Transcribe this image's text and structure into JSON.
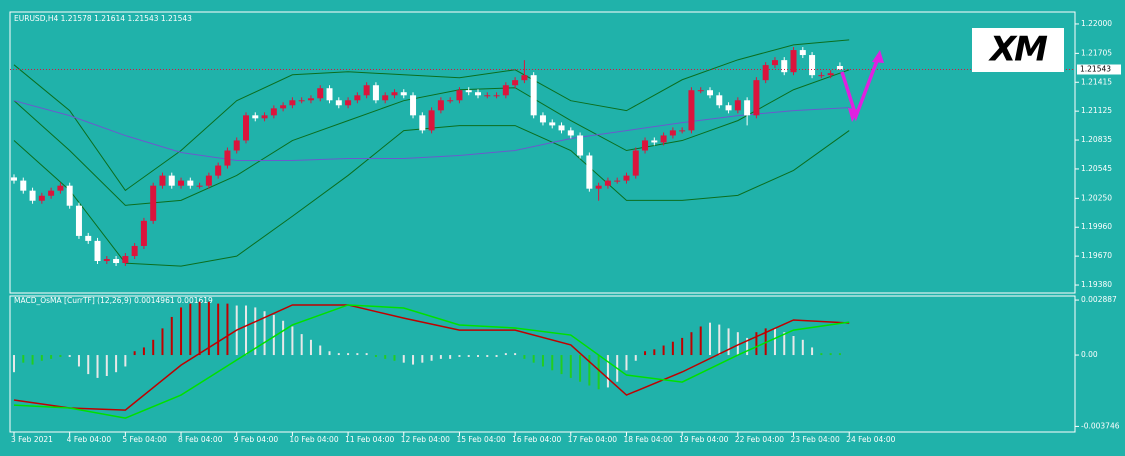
{
  "chart_data": [
    {
      "type": "candlestick",
      "title": "EURUSD,H4",
      "logo": "XM",
      "open": [
        1.2046,
        1.20428,
        1.20327,
        1.20226,
        1.20276,
        1.20327,
        1.20377,
        1.20176,
        1.19873,
        1.19823,
        1.19621,
        1.19641,
        1.19601,
        1.19671,
        1.19772,
        1.20024,
        1.20377,
        1.20478,
        1.20377,
        1.20428,
        1.20377,
        1.20377,
        1.20478,
        1.20579,
        1.2073,
        1.20831,
        1.21083,
        1.21053,
        1.21083,
        1.21153,
        1.21184,
        1.21234,
        1.21234,
        1.21254,
        1.21355,
        1.21234,
        1.21184,
        1.21234,
        1.21284,
        1.21385,
        1.21234,
        1.21284,
        1.21315,
        1.21284,
        1.21083,
        1.20932,
        1.21133,
        1.21234,
        1.21234,
        1.21335,
        1.21315,
        1.21284,
        1.21284,
        1.21284,
        1.21385,
        1.21436,
        1.21486,
        1.21083,
        1.21012,
        1.20982,
        1.20932,
        1.20881,
        1.2068,
        1.20347,
        1.20377,
        1.20428,
        1.20428,
        1.20478,
        1.2073,
        1.20831,
        1.20811,
        1.20881,
        1.20932,
        1.20932,
        1.21335,
        1.21335,
        1.21284,
        1.21184,
        1.21133,
        1.21234,
        1.21083,
        1.21436,
        1.21587,
        1.21637,
        1.21516,
        1.21738,
        1.21688,
        1.21486,
        1.21486,
        1.21578
      ],
      "high": [
        1.2049,
        1.20458,
        1.20357,
        1.20306,
        1.20357,
        1.20407,
        1.20407,
        1.20206,
        1.19903,
        1.19853,
        1.19671,
        1.19671,
        1.19701,
        1.19802,
        1.20054,
        1.20407,
        1.20508,
        1.20508,
        1.20458,
        1.20458,
        1.20407,
        1.20508,
        1.20609,
        1.2076,
        1.20861,
        1.21113,
        1.21113,
        1.21113,
        1.21183,
        1.21214,
        1.21264,
        1.21264,
        1.21284,
        1.21385,
        1.21385,
        1.21264,
        1.21264,
        1.21314,
        1.21415,
        1.21415,
        1.21314,
        1.21345,
        1.21345,
        1.21314,
        1.21113,
        1.21163,
        1.21264,
        1.21264,
        1.21365,
        1.21365,
        1.21345,
        1.21314,
        1.21314,
        1.21415,
        1.21466,
        1.21637,
        1.21516,
        1.21113,
        1.21042,
        1.21012,
        1.20962,
        1.20911,
        1.2071,
        1.20407,
        1.20458,
        1.20458,
        1.20508,
        1.2076,
        1.20861,
        1.20861,
        1.20911,
        1.20962,
        1.20962,
        1.21365,
        1.21365,
        1.21365,
        1.21314,
        1.21214,
        1.21264,
        1.21264,
        1.21466,
        1.21617,
        1.21667,
        1.21667,
        1.21768,
        1.21768,
        1.21718,
        1.21516,
        1.21536,
        1.21614
      ],
      "low": [
        1.20398,
        1.20297,
        1.20196,
        1.20196,
        1.20246,
        1.20297,
        1.20146,
        1.19843,
        1.19793,
        1.19591,
        1.19591,
        1.19571,
        1.19571,
        1.19641,
        1.19742,
        1.19994,
        1.20347,
        1.20347,
        1.20347,
        1.20347,
        1.20347,
        1.20347,
        1.20448,
        1.20549,
        1.207,
        1.20801,
        1.21023,
        1.21023,
        1.21053,
        1.21123,
        1.21154,
        1.21204,
        1.21204,
        1.21224,
        1.21204,
        1.21154,
        1.21154,
        1.21204,
        1.21254,
        1.21204,
        1.21204,
        1.21254,
        1.21254,
        1.21053,
        1.20902,
        1.20902,
        1.21103,
        1.21204,
        1.21204,
        1.21285,
        1.21254,
        1.21254,
        1.21254,
        1.21254,
        1.21355,
        1.21406,
        1.21053,
        1.20982,
        1.20952,
        1.20902,
        1.20851,
        1.2065,
        1.20317,
        1.20226,
        1.20347,
        1.20398,
        1.20398,
        1.20448,
        1.207,
        1.20781,
        1.20781,
        1.20851,
        1.20902,
        1.20902,
        1.21305,
        1.21254,
        1.21154,
        1.21103,
        1.21103,
        1.20982,
        1.21053,
        1.21406,
        1.21557,
        1.21486,
        1.21486,
        1.21658,
        1.21456,
        1.21456,
        1.21456,
        1.21543
      ],
      "close": [
        1.20428,
        1.20327,
        1.20226,
        1.20276,
        1.20327,
        1.20377,
        1.20176,
        1.19873,
        1.19823,
        1.19621,
        1.19641,
        1.19601,
        1.19671,
        1.19772,
        1.20024,
        1.20377,
        1.20478,
        1.20377,
        1.20428,
        1.20377,
        1.20377,
        1.20478,
        1.20579,
        1.2073,
        1.20831,
        1.21083,
        1.21053,
        1.21083,
        1.21153,
        1.21184,
        1.21234,
        1.21234,
        1.21254,
        1.21355,
        1.21234,
        1.21184,
        1.21234,
        1.21284,
        1.21385,
        1.21234,
        1.21284,
        1.21315,
        1.21284,
        1.21083,
        1.20932,
        1.21133,
        1.21234,
        1.21234,
        1.21335,
        1.21315,
        1.21284,
        1.21284,
        1.21284,
        1.21385,
        1.21436,
        1.21486,
        1.21083,
        1.21012,
        1.20982,
        1.20932,
        1.20881,
        1.2068,
        1.20347,
        1.20377,
        1.20428,
        1.20428,
        1.20478,
        1.2073,
        1.20831,
        1.20811,
        1.20881,
        1.20932,
        1.20932,
        1.21335,
        1.21335,
        1.21284,
        1.21184,
        1.21133,
        1.21234,
        1.21083,
        1.21436,
        1.21587,
        1.21637,
        1.21516,
        1.21738,
        1.21688,
        1.21486,
        1.21486,
        1.21506,
        1.21543
      ],
      "up_color": "#dc143c",
      "down_color": "#ffffff",
      "overlay_x": [
        0,
        6,
        12,
        18,
        24,
        30,
        36,
        42,
        48,
        54,
        60,
        66,
        72,
        78,
        84,
        90
      ],
      "overlays": [
        {
          "color": "#0b6e1e",
          "values": [
            1.2159,
            1.2113,
            1.2033,
            1.2073,
            1.2123,
            1.2149,
            1.2152,
            1.2149,
            1.2146,
            1.2154,
            1.2123,
            1.2113,
            1.2144,
            1.2164,
            1.2179,
            1.2184
          ]
        },
        {
          "color": "#0b6e1e",
          "values": [
            1.2123,
            1.2073,
            1.2018,
            1.2023,
            1.2048,
            1.2083,
            1.2103,
            1.2123,
            1.2134,
            1.2136,
            1.2103,
            1.2073,
            1.2083,
            1.2103,
            1.2134,
            1.2154
          ]
        },
        {
          "color": "#0b6e1e",
          "values": [
            1.2083,
            1.2033,
            1.196,
            1.1957,
            1.1967,
            1.2007,
            1.2048,
            1.2093,
            1.2098,
            1.2098,
            1.2073,
            1.2023,
            1.2023,
            1.2028,
            1.2053,
            1.2093
          ]
        },
        {
          "color": "#6a5acd",
          "values": [
            1.2123,
            1.2108,
            1.2088,
            1.2071,
            1.2063,
            1.2063,
            1.2065,
            1.2065,
            1.2068,
            1.2073,
            1.2085,
            1.2093,
            1.2101,
            1.2108,
            1.2113,
            1.2116
          ]
        }
      ],
      "ylim": [
        1.193,
        1.2212
      ],
      "yticks": [
        {
          "value": 1.22,
          "label": "1.22000"
        },
        1.21705,
        1.21415,
        1.21125,
        1.20835,
        1.20545,
        {
          "value": 1.2025,
          "label": "1.20250"
        },
        {
          "value": 1.1996,
          "label": "1.19960"
        },
        {
          "value": 1.1967,
          "label": "1.19670"
        },
        {
          "value": 1.1938,
          "label": "1.19380"
        }
      ],
      "xticks": [
        {
          "value": 0,
          "label": "3 Feb 2021"
        },
        {
          "value": 6,
          "label": "4 Feb 04:00"
        },
        {
          "value": 12,
          "label": "5 Feb 04:00"
        },
        {
          "value": 18,
          "label": "8 Feb 04:00"
        },
        {
          "value": 24,
          "label": "9 Feb 04:00"
        },
        {
          "value": 30,
          "label": "10 Feb 04:00"
        },
        {
          "value": 36,
          "label": "11 Feb 04:00"
        },
        {
          "value": 42,
          "label": "12 Feb 04:00"
        },
        {
          "value": 48,
          "label": "15 Feb 04:00"
        },
        {
          "value": 54,
          "label": "16 Feb 04:00"
        },
        {
          "value": 60,
          "label": "17 Feb 04:00"
        },
        {
          "value": 66,
          "label": "18 Feb 04:00"
        },
        {
          "value": 72,
          "label": "19 Feb 04:00"
        },
        {
          "value": 78,
          "label": "22 Feb 04:00"
        },
        {
          "value": 84,
          "label": "23 Feb 04:00"
        },
        {
          "value": 90,
          "label": "24 Feb 04:00"
        }
      ]
    },
    {
      "type": "macd",
      "label": "MACD_OsMA [CurrTF] (12,26,9)",
      "readings": [
        0.0014961,
        0.001619
      ],
      "histogram": [
        -0.0009,
        -0.0004,
        -0.0005,
        -0.0003,
        -0.0002,
        -0.0001,
        -0.0001,
        -0.0006,
        -0.001,
        -0.0012,
        -0.0011,
        -0.0009,
        -0.0006,
        0.0002,
        0.0004,
        0.0008,
        0.0014,
        0.002,
        0.0025,
        0.0027,
        0.0028,
        0.0028,
        0.0027,
        0.0027,
        0.0026,
        0.0026,
        0.0025,
        0.0023,
        0.0021,
        0.0018,
        0.0015,
        0.0011,
        0.0008,
        0.0005,
        0.0002,
        0.0001,
        0.0001,
        0.0001,
        0.0001,
        -0.0001,
        -0.0002,
        -0.0003,
        -0.0004,
        -0.0005,
        -0.0004,
        -0.0003,
        -0.0002,
        -0.0002,
        -0.0001,
        -0.0001,
        -0.0001,
        -0.0001,
        -0.0001,
        0.0001,
        0.0001,
        -0.0002,
        -0.0004,
        -0.0006,
        -0.0008,
        -0.001,
        -0.0012,
        -0.0014,
        -0.0016,
        -0.0018,
        -0.0017,
        -0.0014,
        -0.0008,
        -0.0003,
        0.0002,
        0.0003,
        0.0005,
        0.0007,
        0.0009,
        0.0012,
        0.0015,
        0.0017,
        0.0016,
        0.0014,
        0.0012,
        0.0009,
        0.0012,
        0.0014,
        0.0014,
        0.0012,
        0.001,
        0.0008,
        0.0004,
        0.0001,
        0.0001,
        0.0001
      ],
      "histogram_colors": [
        "#e8e8e8",
        "#22cc22",
        "#22cc22",
        "#22cc22",
        "#22cc22",
        "#22cc22",
        "#e8e8e8",
        "#e8e8e8",
        "#e8e8e8",
        "#e8e8e8",
        "#e8e8e8",
        "#e8e8e8",
        "#e8e8e8",
        "#c00000",
        "#c00000",
        "#c00000",
        "#c00000",
        "#c00000",
        "#c00000",
        "#c00000",
        "#c00000",
        "#c00000",
        "#c00000",
        "#c00000",
        "#e8e8e8",
        "#e8e8e8",
        "#e8e8e8",
        "#e8e8e8",
        "#e8e8e8",
        "#e8e8e8",
        "#e8e8e8",
        "#e8e8e8",
        "#e8e8e8",
        "#e8e8e8",
        "#e8e8e8",
        "#e8e8e8",
        "#e8e8e8",
        "#e8e8e8",
        "#e8e8e8",
        "#22cc22",
        "#22cc22",
        "#22cc22",
        "#e8e8e8",
        "#e8e8e8",
        "#e8e8e8",
        "#e8e8e8",
        "#e8e8e8",
        "#e8e8e8",
        "#e8e8e8",
        "#e8e8e8",
        "#e8e8e8",
        "#e8e8e8",
        "#e8e8e8",
        "#e8e8e8",
        "#e8e8e8",
        "#22cc22",
        "#22cc22",
        "#22cc22",
        "#22cc22",
        "#22cc22",
        "#22cc22",
        "#22cc22",
        "#22cc22",
        "#22cc22",
        "#e8e8e8",
        "#e8e8e8",
        "#e8e8e8",
        "#e8e8e8",
        "#c00000",
        "#c00000",
        "#c00000",
        "#c00000",
        "#c00000",
        "#c00000",
        "#c00000",
        "#e8e8e8",
        "#e8e8e8",
        "#e8e8e8",
        "#e8e8e8",
        "#e8e8e8",
        "#c00000",
        "#c00000",
        "#e8e8e8",
        "#e8e8e8",
        "#e8e8e8",
        "#e8e8e8",
        "#e8e8e8",
        "#22cc22",
        "#22cc22",
        "#22cc22"
      ],
      "line_x": [
        0,
        6,
        12,
        18,
        24,
        30,
        36,
        42,
        48,
        54,
        60,
        66,
        72,
        78,
        84,
        90
      ],
      "lines": [
        {
          "color": "#c00000",
          "values": [
            -0.00236,
            -0.00278,
            -0.00289,
            -0.00053,
            0.00131,
            0.00263,
            0.00263,
            0.00194,
            0.00131,
            0.00131,
            0.00053,
            -0.0021,
            -0.00089,
            0.00053,
            0.00184,
            0.00168
          ]
        },
        {
          "color": "#00e000",
          "values": [
            -0.00263,
            -0.00278,
            -0.00331,
            -0.0021,
            -0.00026,
            0.00158,
            0.00263,
            0.00247,
            0.00158,
            0.00142,
            0.00105,
            -0.00105,
            -0.00142,
            0,
            0.00131,
            0.00173
          ]
        }
      ],
      "ylim": [
        -0.00404,
        0.0031
      ],
      "yticks": [
        0.002887,
        {
          "value": 0,
          "label": "0.00"
        },
        -0.003746
      ]
    }
  ]
}
